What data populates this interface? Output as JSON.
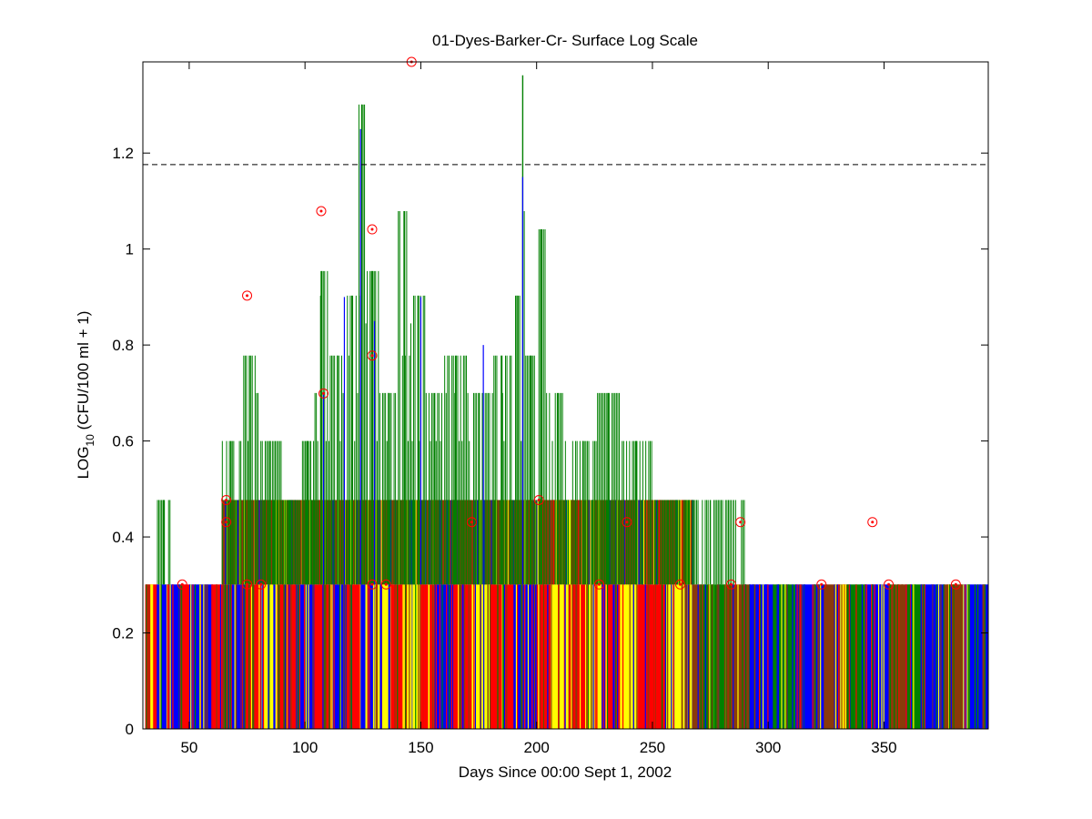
{
  "chart_data": {
    "type": "bar",
    "title": "01-Dyes-Barker-Cr- Surface Log Scale",
    "xlabel": "Days Since 00:00 Sept 1, 2002",
    "ylabel_main": "LOG",
    "ylabel_sub": "10",
    "ylabel_rest": " (CFU/100 ml + 1)",
    "xlim": [
      30,
      395
    ],
    "ylim": [
      0,
      1.39
    ],
    "x_ticks": [
      50,
      100,
      150,
      200,
      250,
      300,
      350
    ],
    "y_ticks": [
      0,
      0.2,
      0.4,
      0.6,
      0.8,
      1,
      1.2
    ],
    "y_tick_labels": [
      "0",
      "0.2",
      "0.4",
      "0.6",
      "0.8",
      "1",
      "1.2"
    ],
    "threshold": {
      "y": 1.176,
      "style": "dashed",
      "color": "#000000"
    },
    "grid": false,
    "colors": {
      "blue": "#0000ff",
      "red": "#ff0000",
      "yellow": "#ffff00",
      "green": "#008000",
      "brown": "#8b3a0a",
      "marker": "#ff0000"
    },
    "base_level": 0.301,
    "level_045": 0.477,
    "color_segments": [
      {
        "x0": 31,
        "x1": 36,
        "color": "red"
      },
      {
        "x0": 36,
        "x1": 46,
        "color": "blue"
      },
      {
        "x0": 46,
        "x1": 50,
        "color": "red"
      },
      {
        "x0": 50,
        "x1": 60,
        "color": "blue"
      },
      {
        "x0": 60,
        "x1": 66,
        "color": "red"
      },
      {
        "x0": 66,
        "x1": 72,
        "color": "blue"
      },
      {
        "x0": 72,
        "x1": 80,
        "color": "red"
      },
      {
        "x0": 80,
        "x1": 88,
        "color": "yellow"
      },
      {
        "x0": 88,
        "x1": 96,
        "color": "red"
      },
      {
        "x0": 96,
        "x1": 104,
        "color": "blue"
      },
      {
        "x0": 104,
        "x1": 112,
        "color": "red"
      },
      {
        "x0": 112,
        "x1": 118,
        "color": "blue"
      },
      {
        "x0": 118,
        "x1": 124,
        "color": "red"
      },
      {
        "x0": 124,
        "x1": 130,
        "color": "blue"
      },
      {
        "x0": 130,
        "x1": 137,
        "color": "yellow"
      },
      {
        "x0": 137,
        "x1": 144,
        "color": "red"
      },
      {
        "x0": 144,
        "x1": 150,
        "color": "yellow"
      },
      {
        "x0": 150,
        "x1": 156,
        "color": "red"
      },
      {
        "x0": 156,
        "x1": 164,
        "color": "blue"
      },
      {
        "x0": 164,
        "x1": 172,
        "color": "red"
      },
      {
        "x0": 172,
        "x1": 180,
        "color": "yellow"
      },
      {
        "x0": 180,
        "x1": 190,
        "color": "red"
      },
      {
        "x0": 190,
        "x1": 200,
        "color": "blue"
      },
      {
        "x0": 200,
        "x1": 206,
        "color": "red"
      },
      {
        "x0": 206,
        "x1": 214,
        "color": "yellow"
      },
      {
        "x0": 214,
        "x1": 222,
        "color": "red"
      },
      {
        "x0": 222,
        "x1": 228,
        "color": "yellow"
      },
      {
        "x0": 228,
        "x1": 236,
        "color": "red"
      },
      {
        "x0": 236,
        "x1": 244,
        "color": "yellow"
      },
      {
        "x0": 244,
        "x1": 256,
        "color": "red"
      },
      {
        "x0": 256,
        "x1": 264,
        "color": "yellow"
      },
      {
        "x0": 264,
        "x1": 272,
        "color": "brown"
      },
      {
        "x0": 272,
        "x1": 282,
        "color": "green"
      },
      {
        "x0": 282,
        "x1": 292,
        "color": "brown"
      },
      {
        "x0": 292,
        "x1": 302,
        "color": "blue"
      },
      {
        "x0": 302,
        "x1": 312,
        "color": "green"
      },
      {
        "x0": 312,
        "x1": 324,
        "color": "blue"
      },
      {
        "x0": 324,
        "x1": 334,
        "color": "brown"
      },
      {
        "x0": 334,
        "x1": 342,
        "color": "green"
      },
      {
        "x0": 342,
        "x1": 352,
        "color": "blue"
      },
      {
        "x0": 352,
        "x1": 360,
        "color": "brown"
      },
      {
        "x0": 360,
        "x1": 366,
        "color": "green"
      },
      {
        "x0": 366,
        "x1": 376,
        "color": "blue"
      },
      {
        "x0": 376,
        "x1": 384,
        "color": "brown"
      },
      {
        "x0": 384,
        "x1": 395,
        "color": "blue"
      }
    ],
    "brown_band": {
      "x0": 64,
      "x1": 268,
      "y0": 0.301,
      "y1": 0.477
    },
    "green_columns": [
      {
        "x0": 36,
        "x1": 42,
        "y": 0.477
      },
      {
        "x0": 64,
        "x1": 72,
        "y": 0.6
      },
      {
        "x0": 72,
        "x1": 80,
        "y": 0.778
      },
      {
        "x0": 80,
        "x1": 90,
        "y": 0.6
      },
      {
        "x0": 90,
        "x1": 98,
        "y": 0.477
      },
      {
        "x0": 98,
        "x1": 104,
        "y": 0.6
      },
      {
        "x0": 104,
        "x1": 110,
        "y": 0.954
      },
      {
        "x0": 110,
        "x1": 118,
        "y": 0.778
      },
      {
        "x0": 118,
        "x1": 123,
        "y": 0.903
      },
      {
        "x0": 123,
        "x1": 126,
        "y": 1.301
      },
      {
        "x0": 126,
        "x1": 132,
        "y": 0.954
      },
      {
        "x0": 132,
        "x1": 140,
        "y": 0.7
      },
      {
        "x0": 140,
        "x1": 146,
        "y": 1.079
      },
      {
        "x0": 146,
        "x1": 152,
        "y": 0.903
      },
      {
        "x0": 152,
        "x1": 160,
        "y": 0.7
      },
      {
        "x0": 160,
        "x1": 170,
        "y": 0.778
      },
      {
        "x0": 170,
        "x1": 180,
        "y": 0.7
      },
      {
        "x0": 180,
        "x1": 190,
        "y": 0.778
      },
      {
        "x0": 190,
        "x1": 193,
        "y": 0.903
      },
      {
        "x0": 193,
        "x1": 195,
        "y": 1.362
      },
      {
        "x0": 195,
        "x1": 200,
        "y": 0.778
      },
      {
        "x0": 200,
        "x1": 204,
        "y": 1.041
      },
      {
        "x0": 204,
        "x1": 214,
        "y": 0.7
      },
      {
        "x0": 214,
        "x1": 226,
        "y": 0.6
      },
      {
        "x0": 226,
        "x1": 236,
        "y": 0.7
      },
      {
        "x0": 236,
        "x1": 250,
        "y": 0.6
      },
      {
        "x0": 250,
        "x1": 270,
        "y": 0.477
      },
      {
        "x0": 270,
        "x1": 280,
        "y": 0.477
      },
      {
        "x0": 280,
        "x1": 290,
        "y": 0.477
      }
    ],
    "blue_spikes": [
      {
        "x": 124,
        "y": 1.25
      },
      {
        "x": 194,
        "y": 1.15
      },
      {
        "x": 117,
        "y": 0.9
      },
      {
        "x": 130,
        "y": 0.85
      },
      {
        "x": 150,
        "y": 0.9
      },
      {
        "x": 177,
        "y": 0.8
      },
      {
        "x": 108,
        "y": 0.7
      }
    ],
    "markers": [
      {
        "x": 47,
        "y": 0.301
      },
      {
        "x": 66,
        "y": 0.477
      },
      {
        "x": 66,
        "y": 0.431
      },
      {
        "x": 75,
        "y": 0.903
      },
      {
        "x": 75,
        "y": 0.301
      },
      {
        "x": 81,
        "y": 0.301
      },
      {
        "x": 107,
        "y": 1.079
      },
      {
        "x": 108,
        "y": 0.699
      },
      {
        "x": 129,
        "y": 1.041
      },
      {
        "x": 129,
        "y": 0.778
      },
      {
        "x": 129,
        "y": 0.301
      },
      {
        "x": 135,
        "y": 0.301
      },
      {
        "x": 146,
        "y": 1.39
      },
      {
        "x": 172,
        "y": 0.431
      },
      {
        "x": 201,
        "y": 0.477
      },
      {
        "x": 227,
        "y": 0.301
      },
      {
        "x": 239,
        "y": 0.431
      },
      {
        "x": 262,
        "y": 0.301
      },
      {
        "x": 284,
        "y": 0.301
      },
      {
        "x": 288,
        "y": 0.431
      },
      {
        "x": 323,
        "y": 0.301
      },
      {
        "x": 345,
        "y": 0.431
      },
      {
        "x": 352,
        "y": 0.301
      },
      {
        "x": 381,
        "y": 0.301
      }
    ]
  }
}
